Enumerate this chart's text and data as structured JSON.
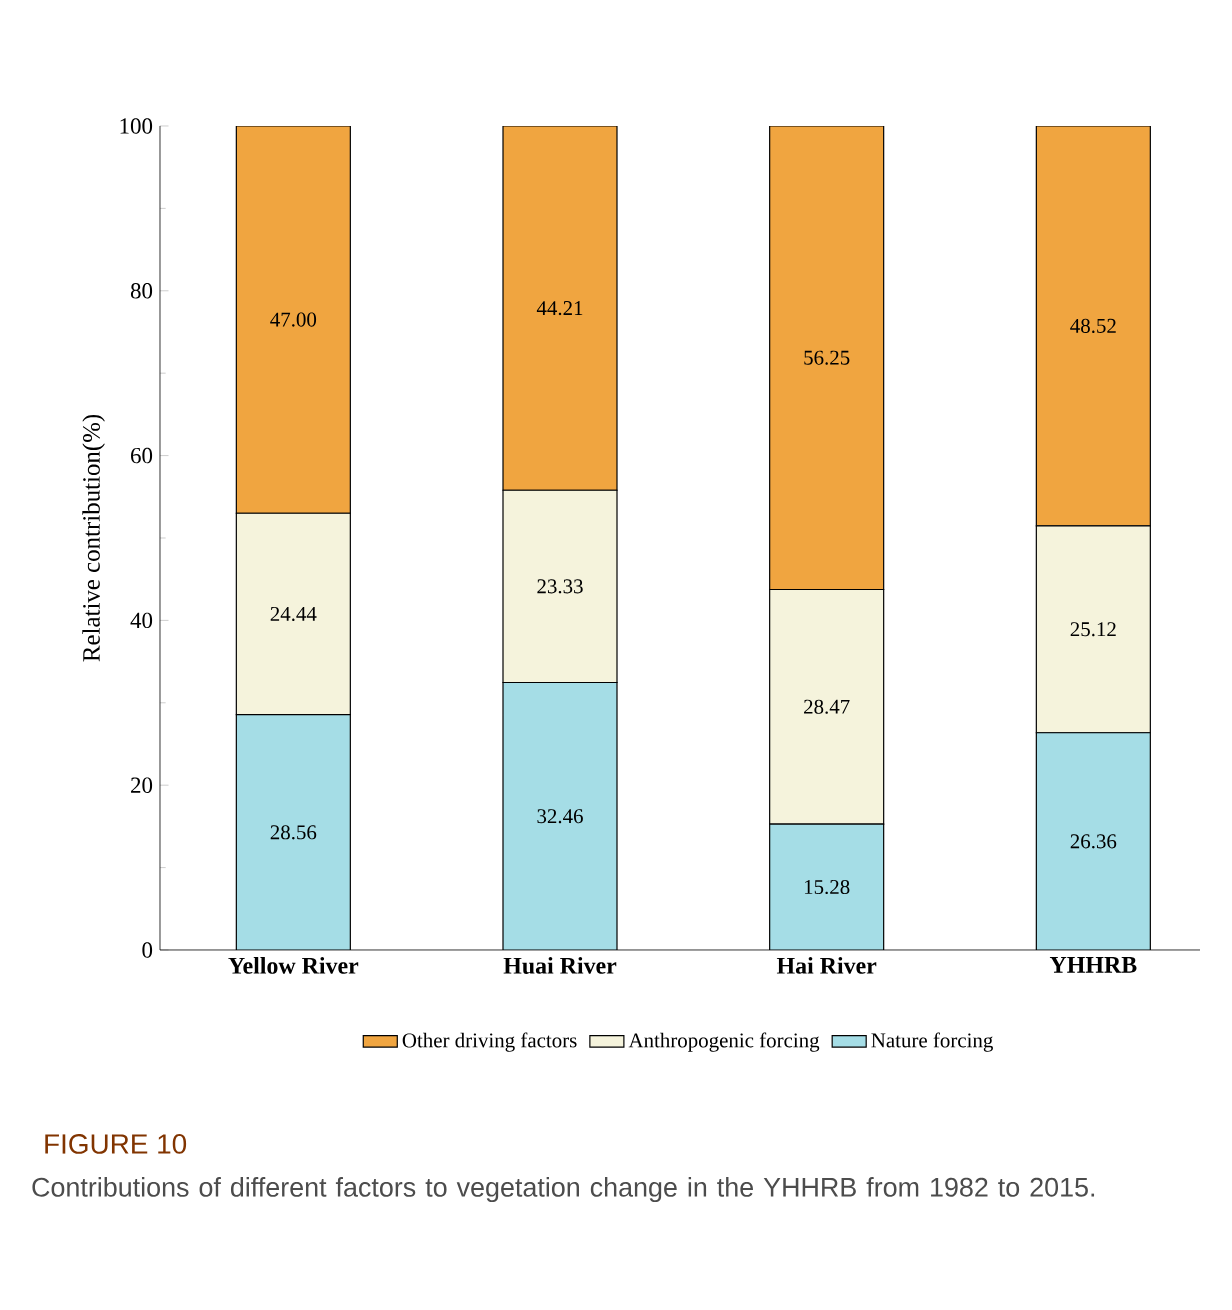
{
  "chart_data": {
    "type": "bar",
    "stacked": true,
    "title": "FIGURE 10",
    "subtitle": "Contributions of different factors to vegetation change in the YHHRB from 1982 to 2015.",
    "ylabel": "Relative contribution(%)",
    "categories": [
      "Yellow River",
      "Huai River",
      "Hai River",
      "YHHRB"
    ],
    "series": [
      {
        "name": "Nature forcing",
        "color": "#a5dde6",
        "values": [
          28.56,
          32.46,
          15.28,
          26.36
        ],
        "value_labels": [
          "28.56",
          "32.46",
          "15.28",
          "26.36"
        ]
      },
      {
        "name": "Anthropogenic forcing",
        "color": "#f5f3dc",
        "values": [
          24.44,
          23.33,
          28.47,
          25.12
        ],
        "value_labels": [
          "24.44",
          "23.33",
          "28.47",
          "25.12"
        ]
      },
      {
        "name": "Other driving factors",
        "color": "#f0a540",
        "values": [
          47.0,
          44.21,
          56.25,
          48.52
        ],
        "value_labels": [
          "47.00",
          "44.21",
          "56.25",
          "48.52"
        ]
      }
    ],
    "ylim": [
      0,
      100
    ],
    "yticks": [
      0,
      20,
      40,
      60,
      80,
      100
    ],
    "legend": "bottom"
  }
}
